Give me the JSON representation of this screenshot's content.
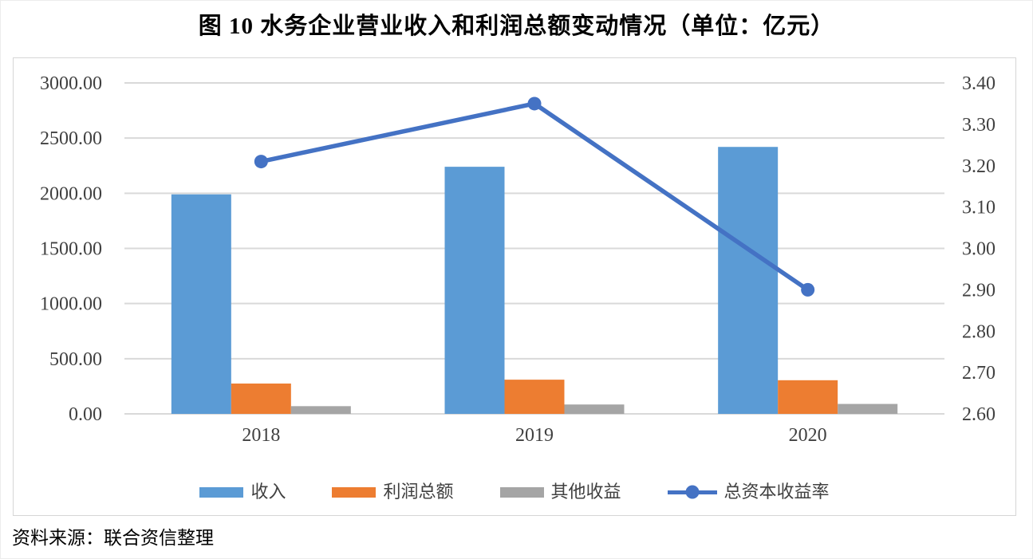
{
  "figure": {
    "title": "图 10 水务企业营业收入和利润总额变动情况（单位：亿元）",
    "source_note": "资料来源：联合资信整理"
  },
  "chart_data": {
    "type": "bar",
    "subtype": "combo-bar-line",
    "title": "图 10 水务企业营业收入和利润总额变动情况（单位：亿元）",
    "categories": [
      "2018",
      "2019",
      "2020"
    ],
    "series": [
      {
        "name": "收入",
        "type": "bar",
        "axis": "left",
        "color": "#5B9BD5",
        "values": [
          1990,
          2240,
          2420
        ]
      },
      {
        "name": "利润总额",
        "type": "bar",
        "axis": "left",
        "color": "#ED7D31",
        "values": [
          275,
          310,
          305
        ]
      },
      {
        "name": "其他收益",
        "type": "bar",
        "axis": "left",
        "color": "#A5A5A5",
        "values": [
          70,
          85,
          90
        ]
      },
      {
        "name": "总资本收益率",
        "type": "line",
        "axis": "right",
        "color": "#4472C4",
        "values": [
          3.21,
          3.35,
          2.9
        ]
      }
    ],
    "left_axis": {
      "min": 0,
      "max": 3000,
      "step": 500,
      "decimals": 2,
      "tick_labels": [
        "0.00",
        "500.00",
        "1000.00",
        "1500.00",
        "2000.00",
        "2500.00",
        "3000.00"
      ]
    },
    "right_axis": {
      "min": 2.6,
      "max": 3.4,
      "step": 0.1,
      "decimals": 2,
      "tick_labels": [
        "2.60",
        "2.70",
        "2.80",
        "2.90",
        "3.00",
        "3.10",
        "3.20",
        "3.30",
        "3.40"
      ]
    },
    "grid": true,
    "legend_position": "bottom"
  },
  "style": {
    "grid_color": "#D9D9D9",
    "axis_text_color": "#404040",
    "plot_border_color": "#D6D6D6",
    "title_color": "#000000"
  }
}
